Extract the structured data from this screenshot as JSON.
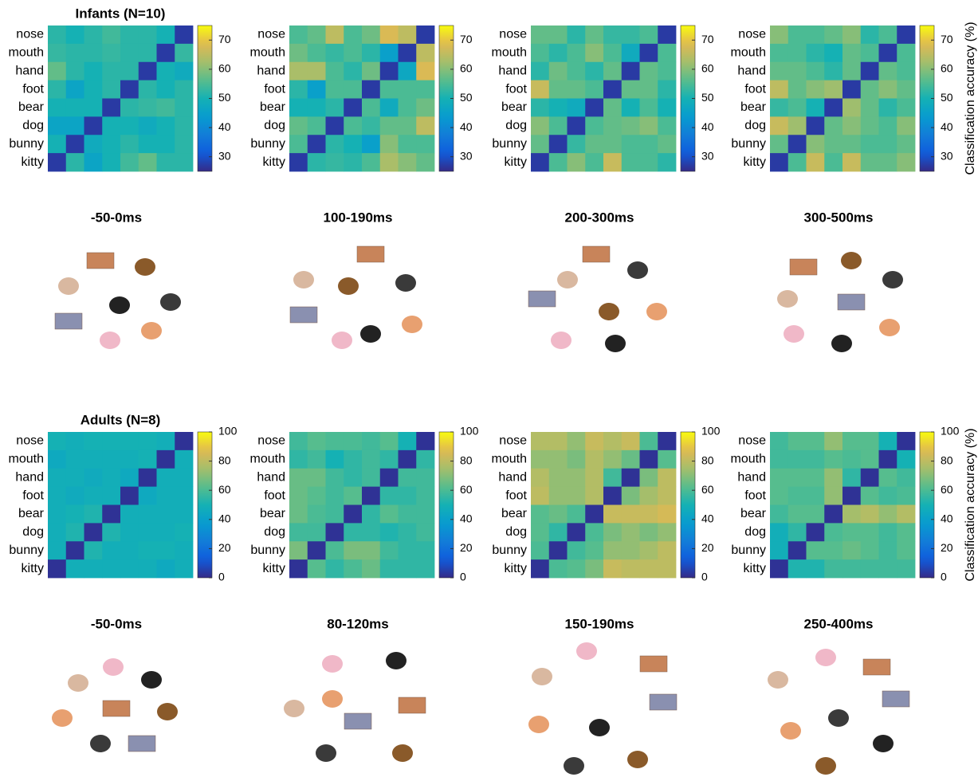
{
  "chart_data": [
    {
      "type": "heatmap",
      "title": "Infants (N=10)",
      "colormap": "parula",
      "rows": [
        "nose",
        "mouth",
        "hand",
        "foot",
        "bear",
        "dog",
        "bunny",
        "kitty"
      ],
      "values": [
        [
          52,
          50,
          52,
          54,
          52,
          52,
          50,
          27
        ],
        [
          53,
          52,
          52,
          53,
          52,
          52,
          27,
          53
        ],
        [
          57,
          52,
          50,
          52,
          52,
          27,
          50,
          48
        ],
        [
          52,
          46,
          50,
          52,
          27,
          52,
          50,
          52
        ],
        [
          50,
          50,
          50,
          27,
          52,
          53,
          54,
          52
        ],
        [
          46,
          46,
          27,
          50,
          50,
          48,
          50,
          52
        ],
        [
          50,
          27,
          48,
          50,
          52,
          50,
          50,
          52
        ],
        [
          27,
          52,
          46,
          50,
          54,
          57,
          52,
          52
        ]
      ],
      "clim": [
        25,
        75
      ],
      "cticks": [
        30,
        40,
        50,
        60,
        70
      ]
    },
    {
      "type": "heatmap",
      "colormap": "parula",
      "rows": [
        "nose",
        "mouth",
        "hand",
        "foot",
        "bear",
        "dog",
        "bunny",
        "kitty"
      ],
      "values": [
        [
          55,
          57,
          65,
          55,
          58,
          68,
          65,
          27
        ],
        [
          58,
          55,
          53,
          55,
          52,
          45,
          27,
          65
        ],
        [
          63,
          63,
          55,
          52,
          58,
          27,
          47,
          68
        ],
        [
          52,
          45,
          55,
          55,
          27,
          55,
          55,
          55
        ],
        [
          50,
          50,
          52,
          27,
          55,
          48,
          55,
          58
        ],
        [
          57,
          55,
          27,
          55,
          53,
          57,
          57,
          65
        ],
        [
          55,
          27,
          52,
          50,
          45,
          60,
          55,
          55
        ],
        [
          27,
          52,
          53,
          52,
          55,
          63,
          60,
          57
        ]
      ],
      "clim": [
        25,
        75
      ],
      "cticks": [
        30,
        40,
        50,
        60,
        70
      ]
    },
    {
      "type": "heatmap",
      "colormap": "parula",
      "rows": [
        "nose",
        "mouth",
        "hand",
        "foot",
        "bear",
        "dog",
        "bunny",
        "kitty"
      ],
      "values": [
        [
          57,
          57,
          52,
          57,
          53,
          53,
          55,
          27
        ],
        [
          55,
          52,
          55,
          60,
          55,
          48,
          27,
          55
        ],
        [
          52,
          58,
          55,
          52,
          57,
          27,
          57,
          55
        ],
        [
          66,
          57,
          57,
          55,
          27,
          57,
          57,
          52
        ],
        [
          52,
          50,
          48,
          27,
          57,
          50,
          55,
          50
        ],
        [
          60,
          55,
          27,
          55,
          57,
          58,
          60,
          55
        ],
        [
          57,
          27,
          53,
          57,
          57,
          55,
          55,
          57
        ],
        [
          27,
          55,
          60,
          55,
          66,
          55,
          55,
          52
        ]
      ],
      "clim": [
        25,
        75
      ],
      "cticks": [
        30,
        40,
        50,
        60,
        70
      ]
    },
    {
      "type": "heatmap",
      "colormap": "parula",
      "colorbar_label": "Classification accuracy (%)",
      "rows": [
        "nose",
        "mouth",
        "hand",
        "foot",
        "bear",
        "dog",
        "bunny",
        "kitty"
      ],
      "values": [
        [
          60,
          55,
          55,
          57,
          60,
          52,
          55,
          27
        ],
        [
          55,
          55,
          52,
          50,
          57,
          55,
          27,
          55
        ],
        [
          57,
          57,
          55,
          52,
          57,
          27,
          57,
          55
        ],
        [
          65,
          57,
          60,
          62,
          27,
          57,
          60,
          57
        ],
        [
          53,
          55,
          50,
          27,
          62,
          57,
          52,
          55
        ],
        [
          66,
          62,
          27,
          57,
          60,
          57,
          55,
          60
        ],
        [
          57,
          27,
          60,
          57,
          57,
          55,
          55,
          57
        ],
        [
          27,
          55,
          66,
          55,
          66,
          57,
          57,
          60
        ]
      ],
      "clim": [
        25,
        75
      ],
      "cticks": [
        30,
        40,
        50,
        60,
        70
      ]
    },
    {
      "type": "scatter",
      "title": "-50-0ms",
      "xlim": [
        -1.1,
        1.1
      ],
      "ylim": [
        -1.1,
        1.1
      ],
      "x": [
        -0.25,
        -0.75,
        -0.75,
        -0.1,
        0.45,
        0.55,
        0.05,
        0.85
      ],
      "y": [
        0.6,
        -0.35,
        0.2,
        -0.65,
        0.5,
        -0.5,
        -0.1,
        -0.05
      ],
      "colors": [
        "#c8845a",
        "#8a90b0",
        "#d9b8a0",
        "#f0b8c8",
        "#8a5a2a",
        "#e8a070",
        "#222222",
        "#3a3a3a"
      ]
    },
    {
      "type": "scatter",
      "title": "100-190ms",
      "xlim": [
        -1.1,
        1.1
      ],
      "ylim": [
        -1.1,
        1.1
      ],
      "x": [
        0.2,
        -0.85,
        -0.85,
        -0.25,
        -0.15,
        0.85,
        0.2,
        0.75
      ],
      "y": [
        0.7,
        -0.25,
        0.3,
        -0.65,
        0.2,
        -0.4,
        -0.55,
        0.25
      ],
      "colors": [
        "#c8845a",
        "#8a90b0",
        "#d9b8a0",
        "#f0b8c8",
        "#8a5a2a",
        "#e8a070",
        "#222222",
        "#3a3a3a"
      ]
    },
    {
      "type": "scatter",
      "title": "200-300ms",
      "xlim": [
        -1.1,
        1.1
      ],
      "ylim": [
        -1.1,
        1.1
      ],
      "x": [
        -0.05,
        -0.9,
        -0.5,
        -0.6,
        0.15,
        0.9,
        0.25,
        0.6
      ],
      "y": [
        0.7,
        0,
        0.3,
        -0.65,
        -0.2,
        -0.2,
        -0.7,
        0.45
      ],
      "colors": [
        "#c8845a",
        "#8a90b0",
        "#d9b8a0",
        "#f0b8c8",
        "#8a5a2a",
        "#e8a070",
        "#222222",
        "#3a3a3a"
      ]
    },
    {
      "type": "scatter",
      "title": "300-500ms",
      "xlim": [
        -1.1,
        1.1
      ],
      "ylim": [
        -1.1,
        1.1
      ],
      "x": [
        -0.55,
        0.2,
        -0.8,
        -0.7,
        0.2,
        0.8,
        0.05,
        0.85
      ],
      "y": [
        0.5,
        -0.05,
        0,
        -0.55,
        0.6,
        -0.45,
        -0.7,
        0.3
      ],
      "colors": [
        "#c8845a",
        "#8a90b0",
        "#d9b8a0",
        "#f0b8c8",
        "#8a5a2a",
        "#e8a070",
        "#222222",
        "#3a3a3a"
      ]
    },
    {
      "type": "heatmap",
      "title": "Adults (N=8)",
      "colormap": "parula",
      "rows": [
        "nose",
        "mouth",
        "hand",
        "foot",
        "bear",
        "dog",
        "bunny",
        "kitty"
      ],
      "values": [
        [
          50,
          48,
          50,
          50,
          50,
          50,
          48,
          2
        ],
        [
          45,
          48,
          48,
          48,
          48,
          50,
          2,
          48
        ],
        [
          48,
          48,
          46,
          48,
          45,
          2,
          48,
          48
        ],
        [
          48,
          46,
          48,
          48,
          2,
          45,
          48,
          48
        ],
        [
          48,
          50,
          52,
          2,
          48,
          48,
          48,
          48
        ],
        [
          48,
          52,
          2,
          52,
          48,
          48,
          48,
          50
        ],
        [
          48,
          2,
          52,
          48,
          48,
          50,
          50,
          48
        ],
        [
          2,
          48,
          48,
          48,
          48,
          48,
          45,
          48
        ]
      ],
      "clim": [
        0,
        100
      ],
      "cticks": [
        0,
        20,
        40,
        60,
        80,
        100
      ]
    },
    {
      "type": "heatmap",
      "colormap": "parula",
      "rows": [
        "nose",
        "mouth",
        "hand",
        "foot",
        "bear",
        "dog",
        "bunny",
        "kitty"
      ],
      "values": [
        [
          58,
          62,
          60,
          60,
          58,
          62,
          50,
          2
        ],
        [
          55,
          58,
          50,
          55,
          58,
          55,
          2,
          55
        ],
        [
          65,
          65,
          58,
          55,
          58,
          2,
          58,
          58
        ],
        [
          65,
          62,
          58,
          62,
          2,
          55,
          55,
          58
        ],
        [
          65,
          60,
          58,
          2,
          55,
          62,
          58,
          58
        ],
        [
          58,
          58,
          2,
          55,
          55,
          52,
          55,
          58
        ],
        [
          68,
          2,
          60,
          68,
          68,
          58,
          55,
          55
        ],
        [
          2,
          62,
          55,
          60,
          65,
          55,
          55,
          55
        ]
      ],
      "clim": [
        0,
        100
      ],
      "cticks": [
        0,
        20,
        40,
        60,
        80,
        100
      ]
    },
    {
      "type": "heatmap",
      "colormap": "parula",
      "rows": [
        "nose",
        "mouth",
        "hand",
        "foot",
        "bear",
        "dog",
        "bunny",
        "kitty"
      ],
      "values": [
        [
          78,
          78,
          72,
          82,
          78,
          82,
          60,
          2
        ],
        [
          72,
          72,
          68,
          78,
          72,
          65,
          2,
          62
        ],
        [
          78,
          72,
          72,
          78,
          58,
          2,
          68,
          80
        ],
        [
          80,
          72,
          72,
          78,
          2,
          68,
          75,
          80
        ],
        [
          62,
          65,
          60,
          2,
          82,
          82,
          82,
          85
        ],
        [
          62,
          55,
          2,
          60,
          68,
          72,
          68,
          72
        ],
        [
          60,
          2,
          58,
          62,
          72,
          72,
          75,
          80
        ],
        [
          2,
          60,
          62,
          68,
          82,
          80,
          80,
          80
        ]
      ],
      "clim": [
        0,
        100
      ],
      "cticks": [
        0,
        20,
        40,
        60,
        80,
        100
      ]
    },
    {
      "type": "heatmap",
      "colormap": "parula",
      "colorbar_label": "Classification accuracy (%)",
      "rows": [
        "nose",
        "mouth",
        "hand",
        "foot",
        "bear",
        "dog",
        "bunny",
        "kitty"
      ],
      "values": [
        [
          58,
          62,
          62,
          72,
          62,
          62,
          50,
          2
        ],
        [
          58,
          58,
          58,
          62,
          60,
          62,
          2,
          50
        ],
        [
          62,
          62,
          62,
          72,
          55,
          2,
          62,
          58
        ],
        [
          62,
          60,
          60,
          72,
          2,
          62,
          58,
          60
        ],
        [
          58,
          62,
          62,
          2,
          75,
          78,
          72,
          78
        ],
        [
          48,
          55,
          2,
          60,
          62,
          62,
          58,
          62
        ],
        [
          48,
          2,
          62,
          62,
          65,
          62,
          58,
          62
        ],
        [
          2,
          52,
          52,
          58,
          58,
          58,
          58,
          58
        ]
      ],
      "clim": [
        0,
        100
      ],
      "cticks": [
        0,
        20,
        40,
        60,
        80,
        100
      ]
    },
    {
      "type": "scatter",
      "title": "-50-0ms",
      "xlim": [
        -1.1,
        1.1
      ],
      "ylim": [
        -1.1,
        1.1
      ],
      "x": [
        0,
        0.4,
        -0.6,
        -0.05,
        0.8,
        -0.85,
        0.55,
        -0.25
      ],
      "y": [
        -0.05,
        -0.6,
        0.35,
        0.6,
        -0.1,
        -0.2,
        0.4,
        -0.6
      ],
      "colors": [
        "#c8845a",
        "#8a90b0",
        "#d9b8a0",
        "#f0b8c8",
        "#8a5a2a",
        "#e8a070",
        "#222222",
        "#3a3a3a"
      ]
    },
    {
      "type": "scatter",
      "title": "80-120ms",
      "xlim": [
        -1.1,
        1.1
      ],
      "ylim": [
        -1.1,
        1.1
      ],
      "x": [
        0.85,
        0,
        -1.0,
        -0.4,
        0.7,
        -0.4,
        0.6,
        -0.5
      ],
      "y": [
        0,
        -0.25,
        -0.05,
        0.65,
        -0.75,
        0.1,
        0.7,
        -0.75
      ],
      "colors": [
        "#c8845a",
        "#8a90b0",
        "#d9b8a0",
        "#f0b8c8",
        "#8a5a2a",
        "#e8a070",
        "#222222",
        "#3a3a3a"
      ]
    },
    {
      "type": "scatter",
      "title": "150-190ms",
      "xlim": [
        -1.1,
        1.1
      ],
      "ylim": [
        -1.1,
        1.1
      ],
      "x": [
        0.85,
        1.0,
        -0.9,
        -0.2,
        0.6,
        -0.95,
        0,
        -0.4
      ],
      "y": [
        0.65,
        0.05,
        0.45,
        0.85,
        -0.85,
        -0.3,
        -0.35,
        -0.95
      ],
      "colors": [
        "#c8845a",
        "#8a90b0",
        "#d9b8a0",
        "#f0b8c8",
        "#8a5a2a",
        "#e8a070",
        "#222222",
        "#3a3a3a"
      ]
    },
    {
      "type": "scatter",
      "title": "250-400ms",
      "xlim": [
        -1.1,
        1.1
      ],
      "ylim": [
        -1.1,
        1.1
      ],
      "x": [
        0.6,
        0.9,
        -0.95,
        -0.2,
        -0.2,
        -0.75,
        0.7,
        0
      ],
      "y": [
        0.6,
        0.1,
        0.4,
        0.75,
        -0.95,
        -0.4,
        -0.6,
        -0.2
      ],
      "colors": [
        "#c8845a",
        "#8a90b0",
        "#d9b8a0",
        "#f0b8c8",
        "#8a5a2a",
        "#e8a070",
        "#222222",
        "#3a3a3a"
      ]
    }
  ]
}
